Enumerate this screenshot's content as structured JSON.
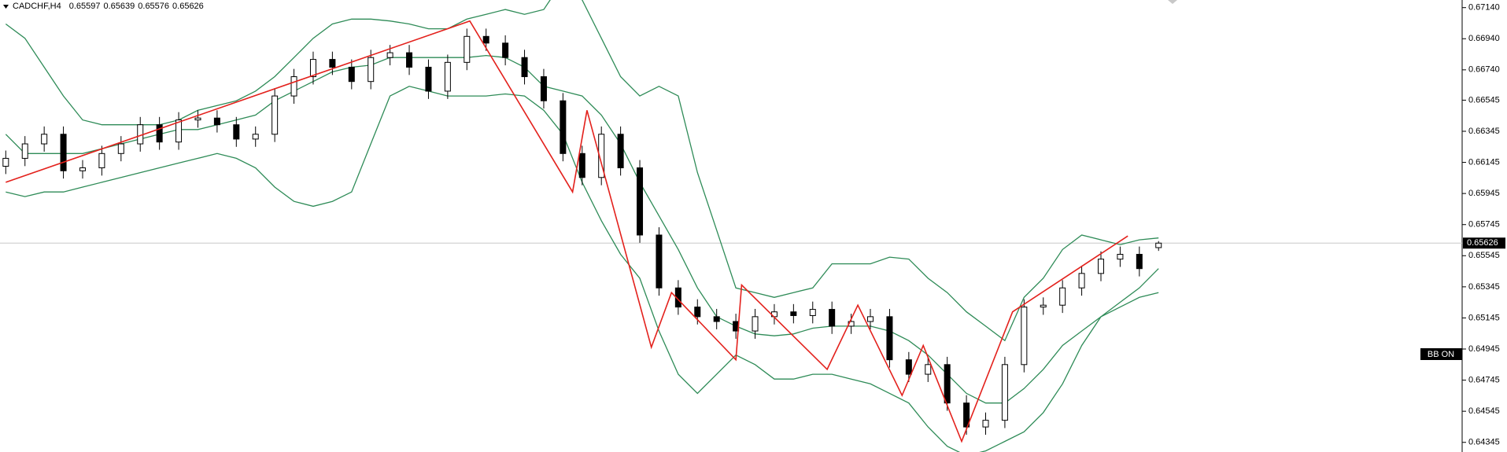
{
  "chart_data": {
    "type": "candlestick",
    "title": "CADCHF,H4",
    "quote": [
      0.65597,
      0.65639,
      0.65576,
      0.65626
    ],
    "indicator_label": "BB ON",
    "current_price": 0.65626,
    "ylim": [
      0.64283,
      0.67189
    ],
    "xlim": [
      -0.3,
      75.8
    ],
    "yticks": [
      {
        "value": 0.6714,
        "label": "0.67140"
      },
      {
        "value": 0.6694,
        "label": "0.66940"
      },
      {
        "value": 0.6674,
        "label": "0.66740"
      },
      0.66545,
      0.66345,
      0.66145,
      0.65945,
      0.65745,
      0.65545,
      0.65345,
      0.65145,
      0.64945,
      0.64745,
      0.64545,
      0.64345
    ],
    "open": [
      0.6612,
      0.66171,
      0.66264,
      0.66326,
      0.66091,
      0.6611,
      0.66202,
      0.66264,
      0.66387,
      0.66276,
      0.66418,
      0.6643,
      0.66387,
      0.66295,
      0.66326,
      0.66572,
      0.66696,
      0.66807,
      0.66757,
      0.66665,
      0.66819,
      0.6685,
      0.66757,
      0.66603,
      0.66788,
      0.66955,
      0.66912,
      0.66819,
      0.66696,
      0.66541,
      0.66202,
      0.66048,
      0.66326,
      0.6611,
      0.65678,
      0.65338,
      0.65215,
      0.65153,
      0.65122,
      0.65061,
      0.65153,
      0.65184,
      0.6516,
      0.652,
      0.65092,
      0.65122,
      0.65153,
      0.64876,
      0.64783,
      0.64845,
      0.64598,
      0.64444,
      0.64487,
      0.64845,
      0.65215,
      0.65227,
      0.65338,
      0.65431,
      0.65523,
      0.65554,
      0.65597
    ],
    "high": [
      0.66221,
      0.66314,
      0.66376,
      0.66376,
      0.6616,
      0.66252,
      0.66314,
      0.66437,
      0.66437,
      0.66468,
      0.6648,
      0.6648,
      0.66437,
      0.66376,
      0.66622,
      0.66746,
      0.66857,
      0.66857,
      0.66807,
      0.66869,
      0.669,
      0.669,
      0.66807,
      0.66838,
      0.67005,
      0.67005,
      0.66962,
      0.66869,
      0.66746,
      0.66591,
      0.66252,
      0.66376,
      0.66376,
      0.6616,
      0.65728,
      0.65388,
      0.65265,
      0.65203,
      0.65172,
      0.65203,
      0.65234,
      0.65234,
      0.6525,
      0.6525,
      0.65172,
      0.65203,
      0.65203,
      0.64926,
      0.64895,
      0.64895,
      0.64648,
      0.64537,
      0.64895,
      0.65265,
      0.65277,
      0.65388,
      0.65481,
      0.65573,
      0.65604,
      0.65604,
      0.65639
    ],
    "low": [
      0.6607,
      0.66121,
      0.66214,
      0.66041,
      0.66041,
      0.6606,
      0.66152,
      0.66214,
      0.66226,
      0.66226,
      0.66368,
      0.66337,
      0.66245,
      0.66245,
      0.66276,
      0.66522,
      0.66646,
      0.66707,
      0.66615,
      0.66615,
      0.66769,
      0.66707,
      0.66553,
      0.66553,
      0.66738,
      0.66862,
      0.66769,
      0.66646,
      0.66491,
      0.66152,
      0.65998,
      0.65998,
      0.6606,
      0.65628,
      0.65288,
      0.65165,
      0.65103,
      0.65072,
      0.65011,
      0.65011,
      0.65103,
      0.6511,
      0.6511,
      0.65042,
      0.65042,
      0.65072,
      0.64826,
      0.64733,
      0.64733,
      0.64548,
      0.64394,
      0.64394,
      0.64437,
      0.64795,
      0.65165,
      0.65177,
      0.65288,
      0.65381,
      0.65473,
      0.65412,
      0.65576
    ],
    "close": [
      0.66171,
      0.66264,
      0.66326,
      0.66091,
      0.6611,
      0.66202,
      0.66264,
      0.66387,
      0.66276,
      0.66418,
      0.6643,
      0.66387,
      0.66295,
      0.66326,
      0.66572,
      0.66696,
      0.66807,
      0.66757,
      0.66665,
      0.66819,
      0.6685,
      0.66757,
      0.66603,
      0.66788,
      0.66955,
      0.66912,
      0.66819,
      0.66696,
      0.66541,
      0.66202,
      0.66048,
      0.66326,
      0.6611,
      0.65678,
      0.65338,
      0.65215,
      0.65153,
      0.65122,
      0.65061,
      0.65153,
      0.65184,
      0.6516,
      0.652,
      0.65092,
      0.65122,
      0.65153,
      0.64876,
      0.64783,
      0.64845,
      0.64598,
      0.64444,
      0.64487,
      0.64845,
      0.65215,
      0.65227,
      0.65338,
      0.65431,
      0.65523,
      0.65554,
      0.65462,
      0.65626
    ],
    "bands": {
      "color": "#2e8b57",
      "upper": [
        0.67035,
        0.66943,
        0.66757,
        0.66572,
        0.66418,
        0.66387,
        0.66387,
        0.66387,
        0.66387,
        0.66418,
        0.6648,
        0.66511,
        0.66541,
        0.66603,
        0.66696,
        0.66819,
        0.66943,
        0.67035,
        0.67066,
        0.67066,
        0.67054,
        0.67035,
        0.67004,
        0.67004,
        0.67066,
        0.67097,
        0.67128,
        0.67097,
        0.67128,
        0.67313,
        0.67189,
        0.66943,
        0.66696,
        0.66572,
        0.66634,
        0.66572,
        0.66079,
        0.65709,
        0.65338,
        0.65308,
        0.65277,
        0.65308,
        0.65338,
        0.65493,
        0.65493,
        0.65493,
        0.65536,
        0.65523,
        0.654,
        0.65308,
        0.65184,
        0.65092,
        0.64999,
        0.65277,
        0.654,
        0.65585,
        0.65678,
        0.65647,
        0.65616,
        0.65647,
        0.65659
      ],
      "middle": [
        0.66326,
        0.66202,
        0.66202,
        0.66202,
        0.66202,
        0.66233,
        0.66264,
        0.66295,
        0.66326,
        0.66356,
        0.66356,
        0.66387,
        0.66418,
        0.66449,
        0.66541,
        0.66603,
        0.66665,
        0.66727,
        0.66757,
        0.6677,
        0.66819,
        0.66819,
        0.66819,
        0.66819,
        0.66819,
        0.66832,
        0.66819,
        0.66757,
        0.66634,
        0.66603,
        0.66572,
        0.66449,
        0.66264,
        0.66017,
        0.65801,
        0.65585,
        0.65338,
        0.65153,
        0.65092,
        0.65042,
        0.6503,
        0.65042,
        0.65079,
        0.65092,
        0.65092,
        0.65092,
        0.65061,
        0.64999,
        0.64906,
        0.64783,
        0.6466,
        0.64598,
        0.64598,
        0.64691,
        0.64814,
        0.64968,
        0.65061,
        0.65153,
        0.65215,
        0.65277,
        0.65308
      ],
      "lower": [
        0.65955,
        0.65925,
        0.65955,
        0.65955,
        0.65986,
        0.66017,
        0.66048,
        0.66079,
        0.6611,
        0.66141,
        0.66171,
        0.66202,
        0.66171,
        0.6611,
        0.65986,
        0.65894,
        0.65863,
        0.65894,
        0.65955,
        0.66264,
        0.66572,
        0.66634,
        0.66603,
        0.66572,
        0.66572,
        0.66572,
        0.66585,
        0.66572,
        0.6648,
        0.66326,
        0.66017,
        0.6577,
        0.65554,
        0.654,
        0.65061,
        0.64783,
        0.6466,
        0.64783,
        0.64906,
        0.64845,
        0.64752,
        0.64752,
        0.64783,
        0.64783,
        0.64752,
        0.64721,
        0.6466,
        0.64598,
        0.64444,
        0.6432,
        0.64259,
        0.6429,
        0.64351,
        0.64413,
        0.64536,
        0.64721,
        0.64968,
        0.65153,
        0.65246,
        0.65338,
        0.65462
      ]
    },
    "zigzag": {
      "color": "#e3211c",
      "x": [
        0,
        24.15,
        29.5,
        30.25,
        33.6,
        34.65,
        38.0,
        38.3,
        42.75,
        44.35,
        46.65,
        47.75,
        49.75,
        52.4,
        58.4
      ],
      "values": [
        0.66017,
        0.67054,
        0.65955,
        0.6648,
        0.64956,
        0.65308,
        0.64876,
        0.65357,
        0.64814,
        0.65227,
        0.64647,
        0.64968,
        0.64351,
        0.65184,
        0.65672
      ]
    }
  }
}
